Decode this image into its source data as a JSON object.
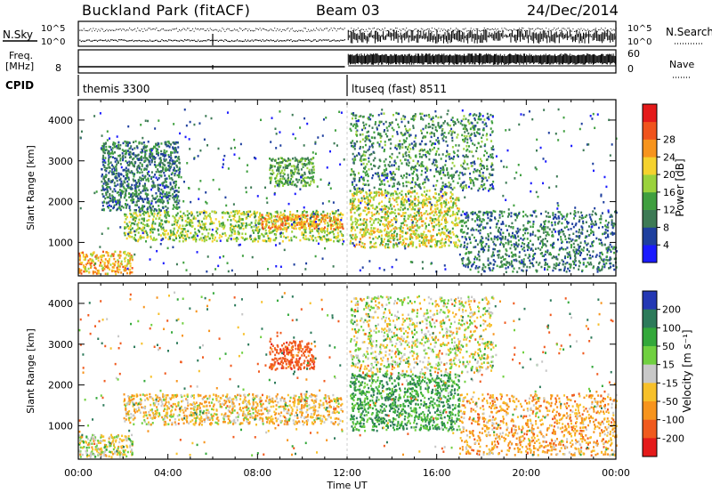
{
  "header": {
    "station": "Buckland Park (fitACF)",
    "beam": "Beam 03",
    "date": "24/Dec/2014"
  },
  "noise_panel": {
    "left_label": "N.Sky",
    "right_label": "N.Search",
    "ticks": [
      "10^5",
      "10^0"
    ]
  },
  "freq_panel": {
    "label": "Freq.",
    "unit": "[MHz]",
    "ticks_left": [
      "8"
    ],
    "ticks_right": [
      "60",
      "0"
    ],
    "right_label": "Nave"
  },
  "cpid": {
    "label": "CPID",
    "segments": [
      {
        "name": "themis 3300",
        "start_h": 0,
        "end_h": 11.9
      },
      {
        "name": "ltuseq (fast) 8511",
        "start_h": 12.0,
        "end_h": 24
      }
    ]
  },
  "chart_data": [
    {
      "type": "heatmap",
      "quantity": "Power",
      "ylabel": "Slant Range [km]",
      "xlabel": "Time UT",
      "xlim_hours": [
        0,
        24
      ],
      "ylim_km": [
        180,
        4500
      ],
      "x_ticks": [
        "00:00",
        "04:00",
        "08:00",
        "12:00",
        "16:00",
        "20:00",
        "00:00"
      ],
      "y_ticks": [
        1000,
        2000,
        3000,
        4000
      ],
      "colorbar": {
        "label": "Power [dB]",
        "ticks": [
          "4",
          "8",
          "12",
          "16",
          "20",
          "24",
          "28"
        ],
        "colors": [
          "#1a1aff",
          "#1e3f9e",
          "#3d7a55",
          "#3f9f3f",
          "#9ad23c",
          "#f5d22e",
          "#f7941d",
          "#f0541d",
          "#e41a1a"
        ]
      },
      "echo_regions": [
        {
          "t0": 0.0,
          "t1": 2.4,
          "r0": 250,
          "r1": 800,
          "level_db": 24
        },
        {
          "t0": 2.0,
          "t1": 11.8,
          "r0": 1050,
          "r1": 1800,
          "level_db": 18
        },
        {
          "t0": 8.0,
          "t1": 11.8,
          "r0": 1350,
          "r1": 1700,
          "level_db": 26
        },
        {
          "t0": 1.0,
          "t1": 4.5,
          "r0": 1800,
          "r1": 3500,
          "level_db": 10
        },
        {
          "t0": 8.5,
          "t1": 10.5,
          "r0": 2400,
          "r1": 3100,
          "level_db": 14
        },
        {
          "t0": 12.1,
          "t1": 17.0,
          "r0": 900,
          "r1": 2300,
          "level_db": 20
        },
        {
          "t0": 12.1,
          "t1": 18.5,
          "r0": 2300,
          "r1": 4200,
          "level_db": 12
        },
        {
          "t0": 17.0,
          "t1": 24.0,
          "r0": 300,
          "r1": 1800,
          "level_db": 10
        }
      ]
    },
    {
      "type": "heatmap",
      "quantity": "Velocity",
      "ylabel": "Slant Range [km]",
      "xlabel": "Time UT",
      "xlim_hours": [
        0,
        24
      ],
      "ylim_km": [
        180,
        4500
      ],
      "x_ticks": [
        "00:00",
        "04:00",
        "08:00",
        "12:00",
        "16:00",
        "20:00",
        "00:00"
      ],
      "y_ticks": [
        1000,
        2000,
        3000,
        4000
      ],
      "colorbar": {
        "label": "Velocity [m s⁻¹]",
        "ticks": [
          "200",
          "100",
          "50",
          "15",
          "-15",
          "-50",
          "-100",
          "-200"
        ],
        "colors": [
          "#2438b4",
          "#2c7a5a",
          "#33a83a",
          "#70d040",
          "#c8c8c8",
          "#f7c02a",
          "#f7941d",
          "#f05a1e",
          "#e41a1a"
        ]
      },
      "echo_regions": [
        {
          "t0": 0.0,
          "t1": 2.4,
          "r0": 250,
          "r1": 800,
          "vel": 0
        },
        {
          "t0": 2.0,
          "t1": 11.8,
          "r0": 1050,
          "r1": 1800,
          "vel": -30
        },
        {
          "t0": 8.5,
          "t1": 10.5,
          "r0": 2400,
          "r1": 3100,
          "vel": -150
        },
        {
          "t0": 12.1,
          "t1": 17.0,
          "r0": 900,
          "r1": 2300,
          "vel": 80
        },
        {
          "t0": 12.1,
          "t1": 18.5,
          "r0": 2300,
          "r1": 4200,
          "vel": 0
        },
        {
          "t0": 17.0,
          "t1": 24.0,
          "r0": 300,
          "r1": 1800,
          "vel": -60
        }
      ]
    }
  ],
  "x_axis_label": "Time UT"
}
